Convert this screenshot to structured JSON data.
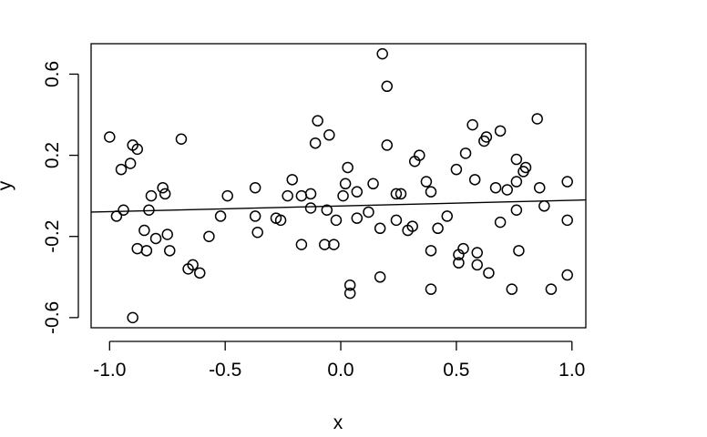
{
  "chart_data": {
    "type": "scatter",
    "title": "",
    "xlabel": "x",
    "ylabel": "y",
    "xlim": [
      -1.08,
      1.06
    ],
    "ylim": [
      -0.65,
      0.75
    ],
    "x_ticks": [
      "-1.0",
      "-0.5",
      "0.0",
      "0.5",
      "1.0"
    ],
    "x_tick_values": [
      -1.0,
      -0.5,
      0.0,
      0.5,
      1.0
    ],
    "y_ticks": [
      "-0.6",
      "-0.2",
      "0.2",
      "0.6"
    ],
    "y_tick_values": [
      -0.6,
      -0.2,
      0.2,
      0.6
    ],
    "grid": false,
    "legend": "none",
    "colors": {
      "points": "#000000",
      "line": "#000000",
      "frame": "#000000"
    },
    "fit_line": {
      "x": [
        -1.08,
        1.06
      ],
      "y": [
        -0.08,
        -0.02
      ]
    },
    "points": [
      {
        "x": -1.0,
        "y": 0.29
      },
      {
        "x": -0.97,
        "y": -0.1
      },
      {
        "x": -0.95,
        "y": 0.13
      },
      {
        "x": -0.94,
        "y": -0.07
      },
      {
        "x": -0.91,
        "y": 0.16
      },
      {
        "x": -0.9,
        "y": 0.25
      },
      {
        "x": -0.88,
        "y": 0.23
      },
      {
        "x": -0.88,
        "y": -0.26
      },
      {
        "x": -0.9,
        "y": -0.6
      },
      {
        "x": -0.85,
        "y": -0.17
      },
      {
        "x": -0.84,
        "y": -0.27
      },
      {
        "x": -0.83,
        "y": -0.07
      },
      {
        "x": -0.82,
        "y": 0.0
      },
      {
        "x": -0.8,
        "y": -0.21
      },
      {
        "x": -0.77,
        "y": 0.04
      },
      {
        "x": -0.76,
        "y": 0.01
      },
      {
        "x": -0.75,
        "y": -0.19
      },
      {
        "x": -0.74,
        "y": -0.27
      },
      {
        "x": -0.69,
        "y": 0.28
      },
      {
        "x": -0.66,
        "y": -0.36
      },
      {
        "x": -0.64,
        "y": -0.34
      },
      {
        "x": -0.61,
        "y": -0.38
      },
      {
        "x": -0.57,
        "y": -0.2
      },
      {
        "x": -0.52,
        "y": -0.1
      },
      {
        "x": -0.49,
        "y": 0.0
      },
      {
        "x": -0.37,
        "y": 0.04
      },
      {
        "x": -0.37,
        "y": -0.1
      },
      {
        "x": -0.36,
        "y": -0.18
      },
      {
        "x": -0.28,
        "y": -0.11
      },
      {
        "x": -0.26,
        "y": -0.12
      },
      {
        "x": -0.23,
        "y": 0.0
      },
      {
        "x": -0.21,
        "y": 0.08
      },
      {
        "x": -0.17,
        "y": 0.0
      },
      {
        "x": -0.17,
        "y": -0.24
      },
      {
        "x": -0.13,
        "y": 0.01
      },
      {
        "x": -0.13,
        "y": -0.06
      },
      {
        "x": -0.11,
        "y": 0.26
      },
      {
        "x": -0.1,
        "y": 0.37
      },
      {
        "x": -0.07,
        "y": -0.24
      },
      {
        "x": -0.06,
        "y": -0.07
      },
      {
        "x": -0.05,
        "y": 0.3
      },
      {
        "x": -0.03,
        "y": -0.24
      },
      {
        "x": -0.02,
        "y": -0.12
      },
      {
        "x": 0.01,
        "y": 0.0
      },
      {
        "x": 0.02,
        "y": 0.06
      },
      {
        "x": 0.03,
        "y": 0.14
      },
      {
        "x": 0.04,
        "y": -0.44
      },
      {
        "x": 0.04,
        "y": -0.48
      },
      {
        "x": 0.07,
        "y": 0.02
      },
      {
        "x": 0.07,
        "y": -0.11
      },
      {
        "x": 0.12,
        "y": -0.08
      },
      {
        "x": 0.14,
        "y": 0.06
      },
      {
        "x": 0.17,
        "y": -0.16
      },
      {
        "x": 0.17,
        "y": -0.4
      },
      {
        "x": 0.18,
        "y": 0.7
      },
      {
        "x": 0.2,
        "y": 0.54
      },
      {
        "x": 0.2,
        "y": 0.25
      },
      {
        "x": 0.24,
        "y": 0.01
      },
      {
        "x": 0.24,
        "y": -0.12
      },
      {
        "x": 0.26,
        "y": 0.01
      },
      {
        "x": 0.29,
        "y": -0.17
      },
      {
        "x": 0.31,
        "y": -0.15
      },
      {
        "x": 0.32,
        "y": 0.17
      },
      {
        "x": 0.34,
        "y": 0.2
      },
      {
        "x": 0.37,
        "y": 0.07
      },
      {
        "x": 0.39,
        "y": 0.02
      },
      {
        "x": 0.39,
        "y": -0.27
      },
      {
        "x": 0.39,
        "y": -0.46
      },
      {
        "x": 0.42,
        "y": -0.16
      },
      {
        "x": 0.46,
        "y": -0.1
      },
      {
        "x": 0.5,
        "y": 0.13
      },
      {
        "x": 0.51,
        "y": -0.29
      },
      {
        "x": 0.51,
        "y": -0.33
      },
      {
        "x": 0.53,
        "y": -0.26
      },
      {
        "x": 0.54,
        "y": 0.21
      },
      {
        "x": 0.57,
        "y": 0.35
      },
      {
        "x": 0.58,
        "y": 0.08
      },
      {
        "x": 0.59,
        "y": -0.28
      },
      {
        "x": 0.59,
        "y": -0.34
      },
      {
        "x": 0.62,
        "y": 0.27
      },
      {
        "x": 0.63,
        "y": 0.29
      },
      {
        "x": 0.64,
        "y": -0.38
      },
      {
        "x": 0.67,
        "y": 0.04
      },
      {
        "x": 0.69,
        "y": 0.32
      },
      {
        "x": 0.69,
        "y": -0.13
      },
      {
        "x": 0.72,
        "y": 0.03
      },
      {
        "x": 0.74,
        "y": -0.46
      },
      {
        "x": 0.76,
        "y": 0.18
      },
      {
        "x": 0.76,
        "y": 0.07
      },
      {
        "x": 0.76,
        "y": -0.07
      },
      {
        "x": 0.77,
        "y": -0.27
      },
      {
        "x": 0.79,
        "y": 0.12
      },
      {
        "x": 0.8,
        "y": 0.14
      },
      {
        "x": 0.85,
        "y": 0.38
      },
      {
        "x": 0.86,
        "y": 0.04
      },
      {
        "x": 0.88,
        "y": -0.05
      },
      {
        "x": 0.91,
        "y": -0.46
      },
      {
        "x": 0.98,
        "y": 0.07
      },
      {
        "x": 0.98,
        "y": -0.12
      },
      {
        "x": 0.98,
        "y": -0.39
      }
    ]
  }
}
